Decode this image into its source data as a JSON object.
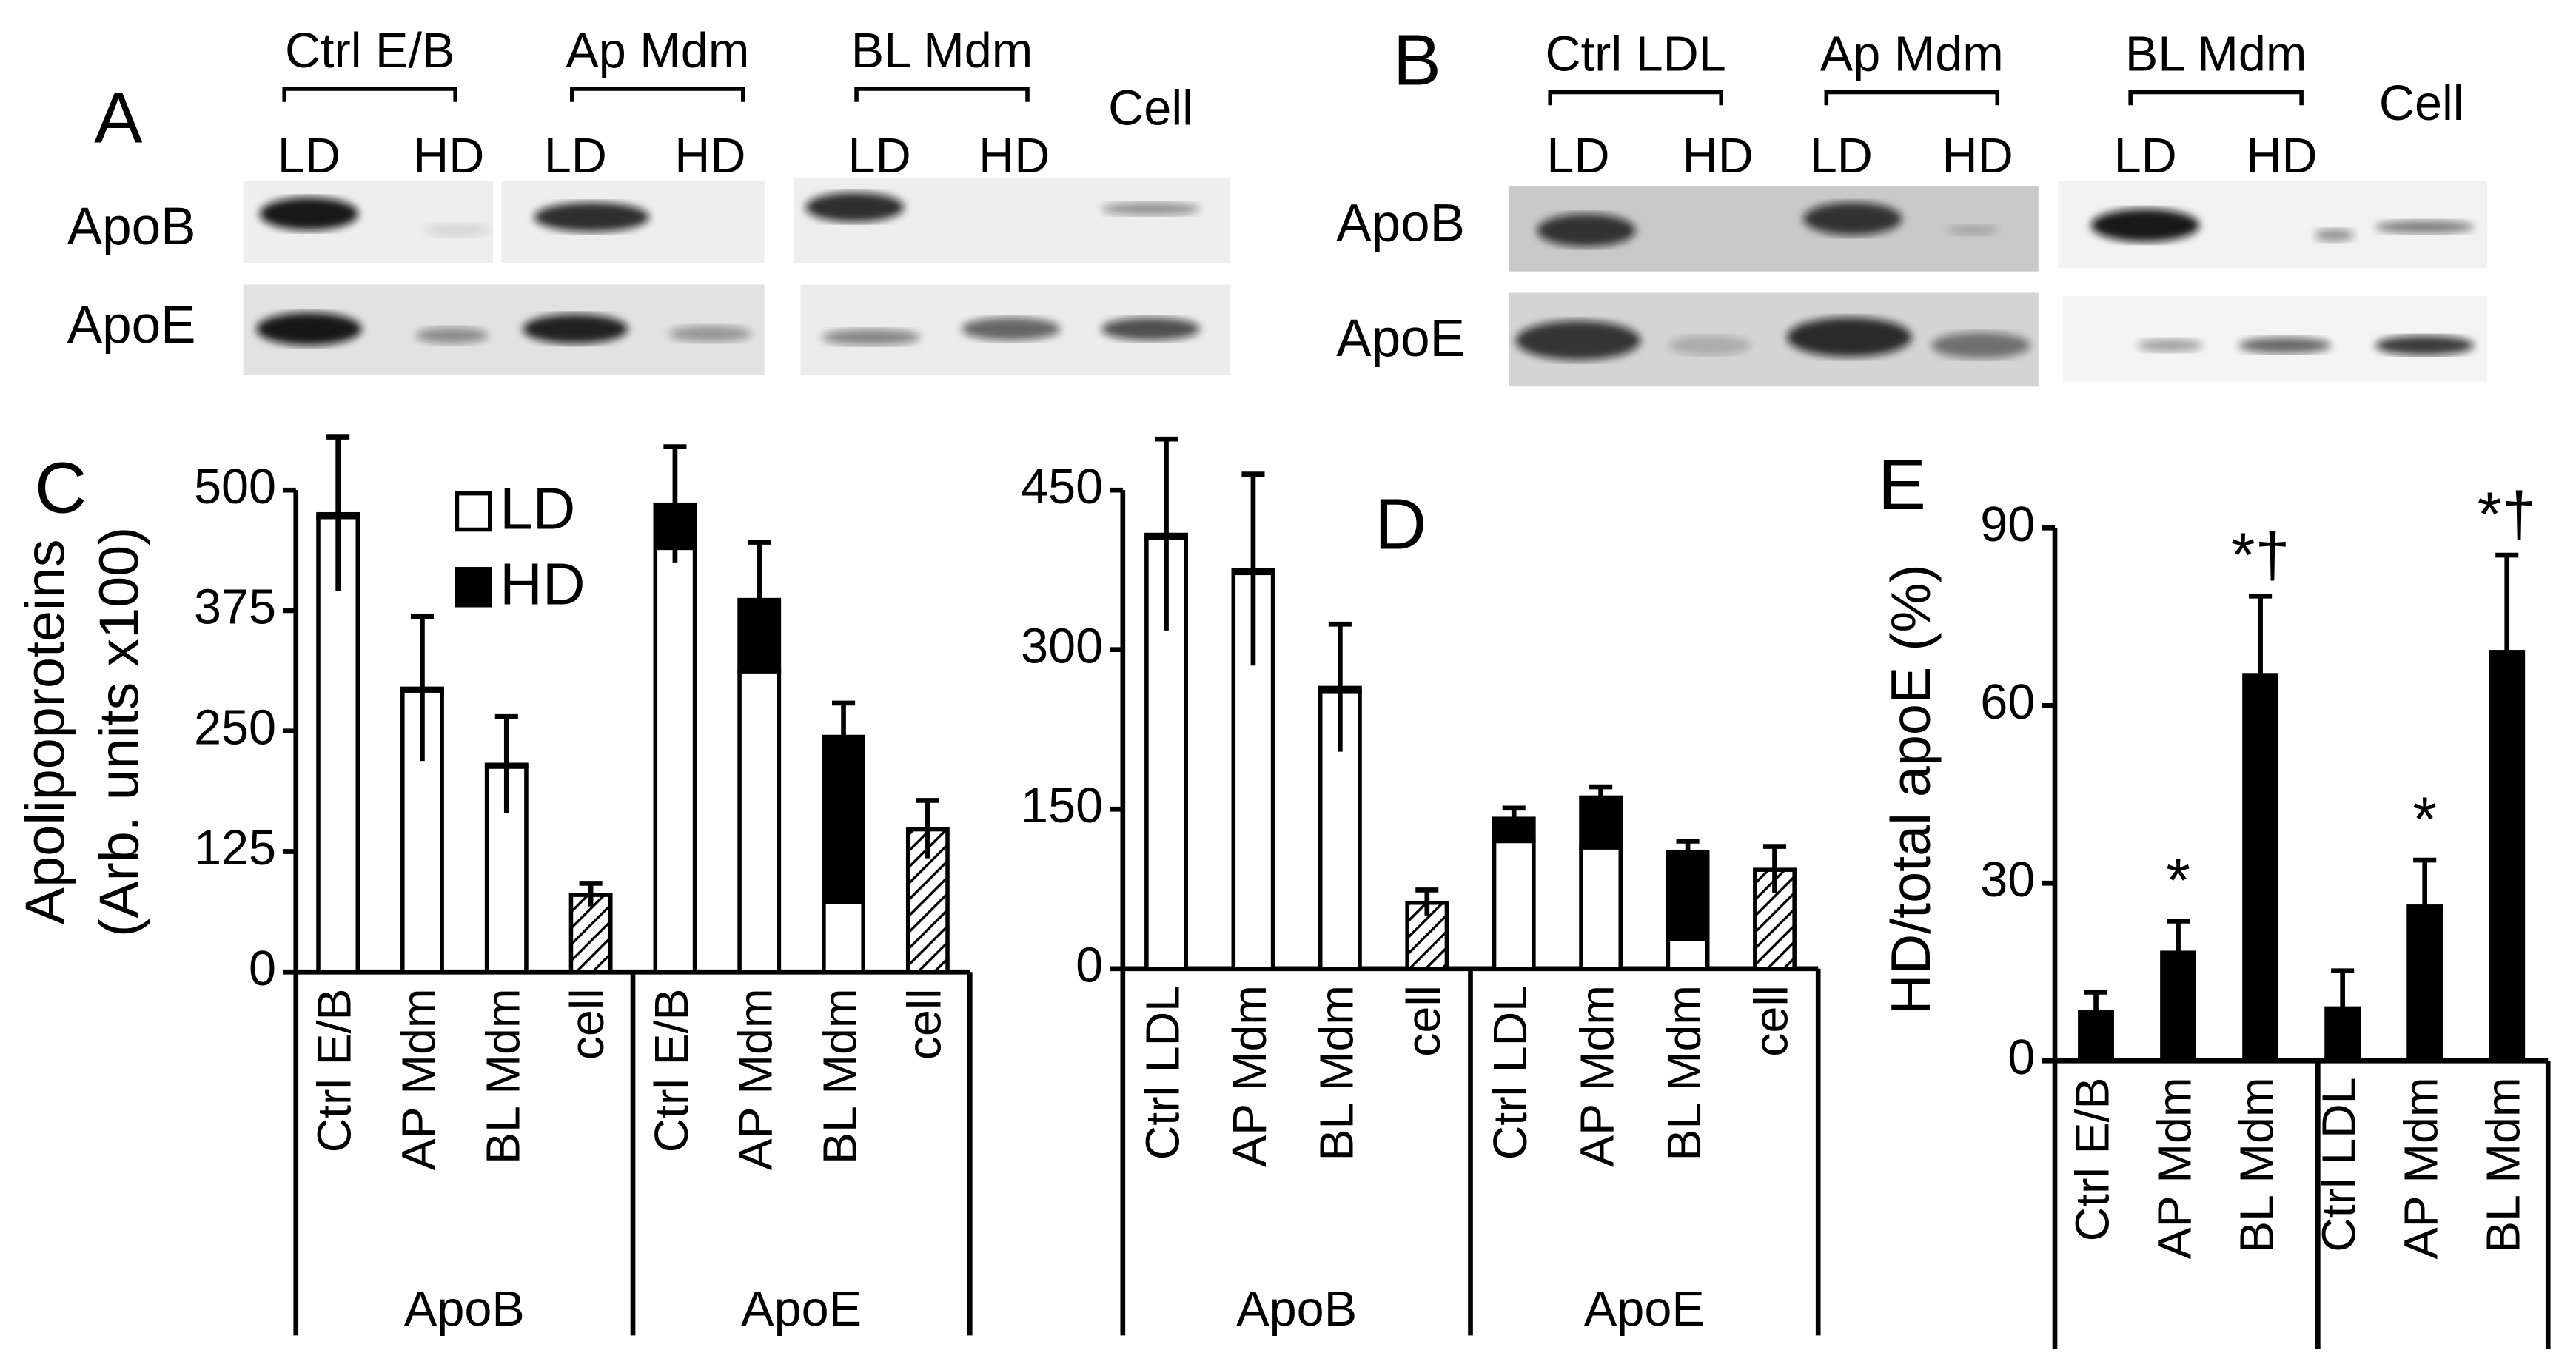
{
  "blots": [
    {
      "label": "A",
      "groups": [
        "Ctrl E/B",
        "Ap Mdm",
        "BL Mdm"
      ],
      "cell": "Cell",
      "lanes": [
        "LD",
        "HD",
        "LD",
        "HD",
        "LD",
        "HD"
      ],
      "rows": [
        "ApoB",
        "ApoE"
      ]
    },
    {
      "label": "B",
      "groups": [
        "Ctrl LDL",
        "Ap Mdm",
        "BL Mdm"
      ],
      "cell": "Cell",
      "lanes": [
        "LD",
        "HD",
        "LD",
        "HD",
        "LD",
        "HD"
      ],
      "rows": [
        "ApoB",
        "ApoE"
      ]
    }
  ],
  "chart_data": [
    {
      "type": "stacked_bar",
      "label": "C",
      "y_label": [
        "Apolipoproteins",
        "(Arb. units x100)"
      ],
      "categories": [
        "Ctrl E/B",
        "AP Mdm",
        "BL Mdm",
        "cell",
        "Ctrl E/B",
        "AP Mdm",
        "BL Mdm",
        "cell"
      ],
      "groups": [
        "ApoB",
        "ApoE"
      ],
      "series": [
        {
          "name": "LD",
          "color": "#ffffff",
          "values": [
            472,
            292,
            213,
            null,
            440,
            312,
            73,
            null
          ]
        },
        {
          "name": "HD",
          "color": "#000000",
          "values": [
            3,
            2,
            2,
            null,
            45,
            74,
            171,
            null
          ]
        },
        {
          "color": "#000000",
          "pattern": "hatch",
          "values": [
            null,
            null,
            null,
            80,
            null,
            null,
            null,
            148
          ]
        }
      ],
      "errors": [
        80,
        75,
        50,
        12,
        60,
        60,
        35,
        30
      ],
      "ylim": [
        0,
        500
      ],
      "yticks": [
        0,
        125,
        250,
        375,
        500
      ]
    },
    {
      "type": "stacked_bar",
      "label": "D",
      "categories": [
        "Ctrl LDL",
        "AP Mdm",
        "BL Mdm",
        "cell",
        "Ctrl LDL",
        "AP Mdm",
        "BL Mdm",
        "cell"
      ],
      "groups": [
        "ApoB",
        "ApoE"
      ],
      "series": [
        {
          "color": "#ffffff",
          "values": [
            405,
            372,
            261,
            null,
            120,
            114,
            28,
            null
          ]
        },
        {
          "color": "#000000",
          "values": [
            3,
            3,
            3,
            null,
            21,
            47,
            82,
            null
          ]
        },
        {
          "color": "#000000",
          "pattern": "hatch",
          "values": [
            null,
            null,
            null,
            62,
            null,
            null,
            null,
            93
          ]
        }
      ],
      "errors": [
        90,
        90,
        60,
        12,
        10,
        10,
        10,
        22
      ],
      "ylim": [
        0,
        450
      ],
      "yticks": [
        0,
        150,
        300,
        450
      ]
    },
    {
      "type": "bar",
      "label": "E",
      "y_label": "HD/total apoE (%)",
      "categories": [
        "Ctrl E/B",
        "AP Mdm",
        "BL Mdm",
        "Ctrl LDL",
        "AP Mdm",
        "BL Mdm"
      ],
      "values": [
        8.6,
        18.6,
        65.5,
        9.2,
        26.4,
        69.4
      ],
      "errors": [
        3,
        5,
        13,
        6,
        7.5,
        16
      ],
      "annotations": [
        null,
        "*",
        "*†",
        null,
        "*",
        "*†"
      ],
      "color": "#000000",
      "ylim": [
        0,
        90
      ],
      "yticks": [
        0,
        30,
        60,
        90
      ]
    }
  ]
}
